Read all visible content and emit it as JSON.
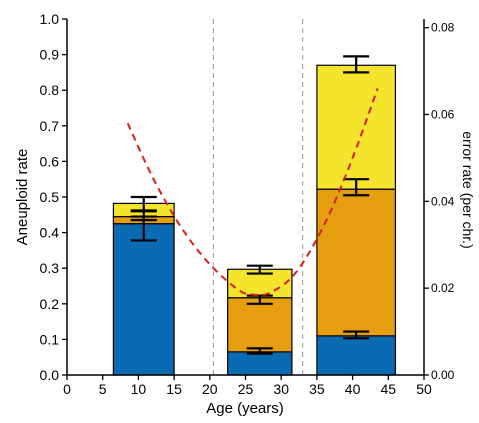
{
  "chart_data": {
    "type": "bar",
    "stacked": true,
    "xlabel": "Age (years)",
    "ylabel": "Aneuploid rate",
    "y2label": "error rate (per chr.)",
    "xlim": [
      0,
      50
    ],
    "ylim": [
      0,
      1.0
    ],
    "y2lim": [
      0,
      0.082
    ],
    "x_ticks": [
      "0",
      "5",
      "10",
      "15",
      "20",
      "25",
      "30",
      "35",
      "40",
      "45",
      "50"
    ],
    "y_ticks": [
      "0.0",
      "0.1",
      "0.2",
      "0.3",
      "0.4",
      "0.5",
      "0.6",
      "0.7",
      "0.8",
      "0.9",
      "1.0"
    ],
    "y2_ticks": [
      "0.00",
      "0.02",
      "0.04",
      "0.06",
      "0.08"
    ],
    "vlines": [
      20.5,
      33
    ],
    "bars": [
      {
        "x_start": 6.5,
        "x_end": 15,
        "center": 10.75,
        "segments": [
          {
            "bottom": 0,
            "top": 0.425,
            "color": "#0A6BB3",
            "err_lo": 0.378,
            "err_hi": 0.445
          },
          {
            "bottom": 0.425,
            "top": 0.445,
            "color": "#E59E0D",
            "err_lo": 0.435,
            "err_hi": 0.46
          },
          {
            "bottom": 0.445,
            "top": 0.482,
            "color": "#F4E42B",
            "err_lo": 0.462,
            "err_hi": 0.5
          }
        ]
      },
      {
        "x_start": 22.5,
        "x_end": 31.5,
        "center": 27,
        "segments": [
          {
            "bottom": 0,
            "top": 0.065,
            "color": "#0A6BB3",
            "err_lo": 0.06,
            "err_hi": 0.075
          },
          {
            "bottom": 0.065,
            "top": 0.217,
            "color": "#E59E0D",
            "err_lo": 0.2,
            "err_hi": 0.223
          },
          {
            "bottom": 0.217,
            "top": 0.297,
            "color": "#F4E42B",
            "err_lo": 0.285,
            "err_hi": 0.307
          }
        ]
      },
      {
        "x_start": 35,
        "x_end": 46,
        "center": 40.5,
        "segments": [
          {
            "bottom": 0,
            "top": 0.11,
            "color": "#0A6BB3",
            "err_lo": 0.103,
            "err_hi": 0.122
          },
          {
            "bottom": 0.11,
            "top": 0.522,
            "color": "#E59E0D",
            "err_lo": 0.505,
            "err_hi": 0.55
          },
          {
            "bottom": 0.522,
            "top": 0.87,
            "color": "#F4E42B",
            "err_lo": 0.85,
            "err_hi": 0.895
          }
        ]
      }
    ],
    "trend_line": {
      "axis": "right",
      "color": "#D81E1E",
      "style": "dashed",
      "points": [
        [
          8.5,
          0.058
        ],
        [
          12,
          0.0455
        ],
        [
          16,
          0.034
        ],
        [
          20,
          0.0255
        ],
        [
          24,
          0.0196
        ],
        [
          26.2,
          0.0185
        ],
        [
          28.5,
          0.019
        ],
        [
          32,
          0.0235
        ],
        [
          36,
          0.0345
        ],
        [
          40,
          0.05
        ],
        [
          43.5,
          0.066
        ]
      ]
    }
  }
}
